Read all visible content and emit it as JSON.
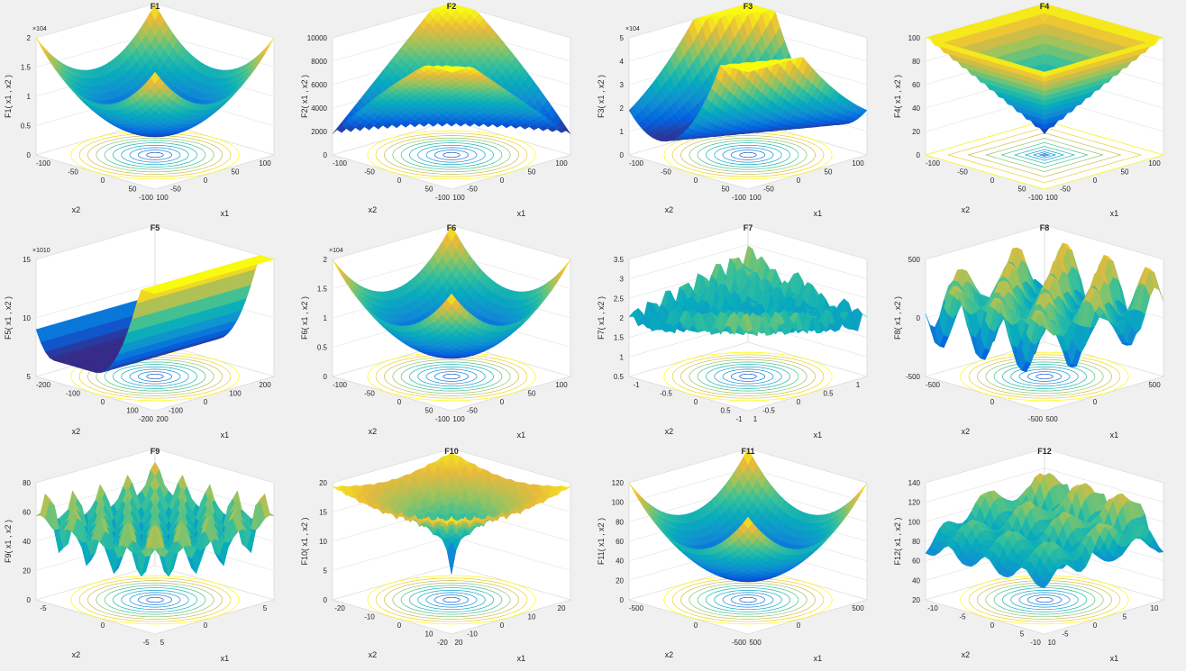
{
  "figure": {
    "background": "#f0f0f0",
    "colormap": "parula"
  },
  "chart_data": [
    {
      "id": "F1",
      "type": "surface3d",
      "title": "F1",
      "zlabel": "F1( x1 , x2 )",
      "xlabel": "x1",
      "ylabel": "x2",
      "z_exponent": "×10^4",
      "zticks": [
        "0",
        "0.5",
        "1",
        "1.5",
        "2"
      ],
      "xticks": [
        "-100",
        "-50",
        "0",
        "50",
        "100"
      ],
      "yticks": [
        "-100",
        "-50",
        "0",
        "50",
        "100"
      ],
      "shape": "bowl",
      "contour": "rings",
      "zmax": 20000
    },
    {
      "id": "F2",
      "type": "surface3d",
      "title": "F2",
      "zlabel": "F2( x1 , x2 )",
      "xlabel": "x1",
      "ylabel": "x2",
      "z_exponent": "",
      "zticks": [
        "0",
        "2000",
        "4000",
        "6000",
        "8000",
        "10000"
      ],
      "xticks": [
        "-100",
        "-50",
        "0",
        "50",
        "100"
      ],
      "yticks": [
        "-100",
        "-50",
        "0",
        "50",
        "100"
      ],
      "shape": "vee",
      "contour": "rings",
      "zmax": 10000
    },
    {
      "id": "F3",
      "type": "surface3d",
      "title": "F3",
      "zlabel": "F3( x1 , x2 )",
      "xlabel": "x1",
      "ylabel": "x2",
      "z_exponent": "×10^4",
      "zticks": [
        "0",
        "1",
        "2",
        "3",
        "4",
        "5"
      ],
      "xticks": [
        "-100",
        "-50",
        "0",
        "50",
        "100"
      ],
      "yticks": [
        "-100",
        "-50",
        "0",
        "50",
        "100"
      ],
      "shape": "trough",
      "contour": "ellipse",
      "zmax": 50000
    },
    {
      "id": "F4",
      "type": "surface3d",
      "title": "F4",
      "zlabel": "F4( x1 , x2 )",
      "xlabel": "x1",
      "ylabel": "x2",
      "z_exponent": "",
      "zticks": [
        "0",
        "20",
        "40",
        "60",
        "80",
        "100"
      ],
      "xticks": [
        "-100",
        "-50",
        "0",
        "50",
        "100"
      ],
      "yticks": [
        "-100",
        "-50",
        "0",
        "50",
        "100"
      ],
      "shape": "pyramid",
      "contour": "squares",
      "zmax": 100
    },
    {
      "id": "F5",
      "type": "surface3d",
      "title": "F5",
      "zlabel": "F5( x1 , x2 )",
      "xlabel": "x1",
      "ylabel": "x2",
      "z_exponent": "×10^10",
      "zticks": [
        "5",
        "10",
        "15"
      ],
      "xticks": [
        "-200",
        "-100",
        "0",
        "100",
        "200"
      ],
      "yticks": [
        "-200",
        "-100",
        "0",
        "100",
        "200"
      ],
      "shape": "valley",
      "contour": "lines",
      "zmax": 150000000000.0
    },
    {
      "id": "F6",
      "type": "surface3d",
      "title": "F6",
      "zlabel": "F6( x1 , x2 )",
      "xlabel": "x1",
      "ylabel": "x2",
      "z_exponent": "×10^4",
      "zticks": [
        "0",
        "0.5",
        "1",
        "1.5",
        "2"
      ],
      "xticks": [
        "-100",
        "-50",
        "0",
        "50",
        "100"
      ],
      "yticks": [
        "-100",
        "-50",
        "0",
        "50",
        "100"
      ],
      "shape": "bowl",
      "contour": "rings",
      "zmax": 20000
    },
    {
      "id": "F7",
      "type": "surface3d",
      "title": "F7",
      "zlabel": "F7( x1 , x2 )",
      "xlabel": "x1",
      "ylabel": "x2",
      "z_exponent": "",
      "zticks": [
        "0.5",
        "1",
        "1.5",
        "2",
        "2.5",
        "3",
        "3.5"
      ],
      "xticks": [
        "-1",
        "-0.5",
        "0",
        "0.5",
        "1"
      ],
      "yticks": [
        "-1",
        "-0.5",
        "0",
        "0.5",
        "1"
      ],
      "shape": "noise",
      "contour": "dots",
      "zmax": 3.5
    },
    {
      "id": "F8",
      "type": "surface3d",
      "title": "F8",
      "zlabel": "F8( x1 , x2 )",
      "xlabel": "x1",
      "ylabel": "x2",
      "z_exponent": "",
      "zticks": [
        "-500",
        "0",
        "500"
      ],
      "xticks": [
        "-500",
        "0",
        "500"
      ],
      "yticks": [
        "-500",
        "0",
        "500"
      ],
      "shape": "waves",
      "contour": "cells",
      "zmax": 800
    },
    {
      "id": "F9",
      "type": "surface3d",
      "title": "F9",
      "zlabel": "F9( x1 , x2 )",
      "xlabel": "x1",
      "ylabel": "x2",
      "z_exponent": "",
      "zticks": [
        "0",
        "20",
        "40",
        "60",
        "80"
      ],
      "xticks": [
        "-5",
        "0",
        "5"
      ],
      "yticks": [
        "-5",
        "0",
        "5"
      ],
      "shape": "egg",
      "contour": "cells",
      "zmax": 80
    },
    {
      "id": "F10",
      "type": "surface3d",
      "title": "F10",
      "zlabel": "F10( x1 , x2 )",
      "xlabel": "x1",
      "ylabel": "x2",
      "z_exponent": "",
      "zticks": [
        "0",
        "5",
        "10",
        "15",
        "20"
      ],
      "xticks": [
        "-20",
        "-10",
        "0",
        "10",
        "20"
      ],
      "yticks": [
        "-20",
        "-10",
        "0",
        "10",
        "20"
      ],
      "shape": "funnel",
      "contour": "rings",
      "zmax": 21
    },
    {
      "id": "F11",
      "type": "surface3d",
      "title": "F11",
      "zlabel": "F11( x1 , x2 )",
      "xlabel": "x1",
      "ylabel": "x2",
      "z_exponent": "",
      "zticks": [
        "0",
        "20",
        "40",
        "60",
        "80",
        "100",
        "120"
      ],
      "xticks": [
        "-500",
        "0",
        "500"
      ],
      "yticks": [
        "-500",
        "0",
        "500"
      ],
      "shape": "bowl",
      "contour": "rings",
      "zmax": 120
    },
    {
      "id": "F12",
      "type": "surface3d",
      "title": "F12",
      "zlabel": "F12( x1 , x2 )",
      "xlabel": "x1",
      "ylabel": "x2",
      "z_exponent": "",
      "zticks": [
        "20",
        "40",
        "60",
        "80",
        "100",
        "120",
        "140"
      ],
      "xticks": [
        "-10",
        "-5",
        "0",
        "5",
        "10"
      ],
      "yticks": [
        "-10",
        "-5",
        "0",
        "5",
        "10"
      ],
      "shape": "ridges",
      "contour": "rings",
      "zmax": 140
    }
  ]
}
